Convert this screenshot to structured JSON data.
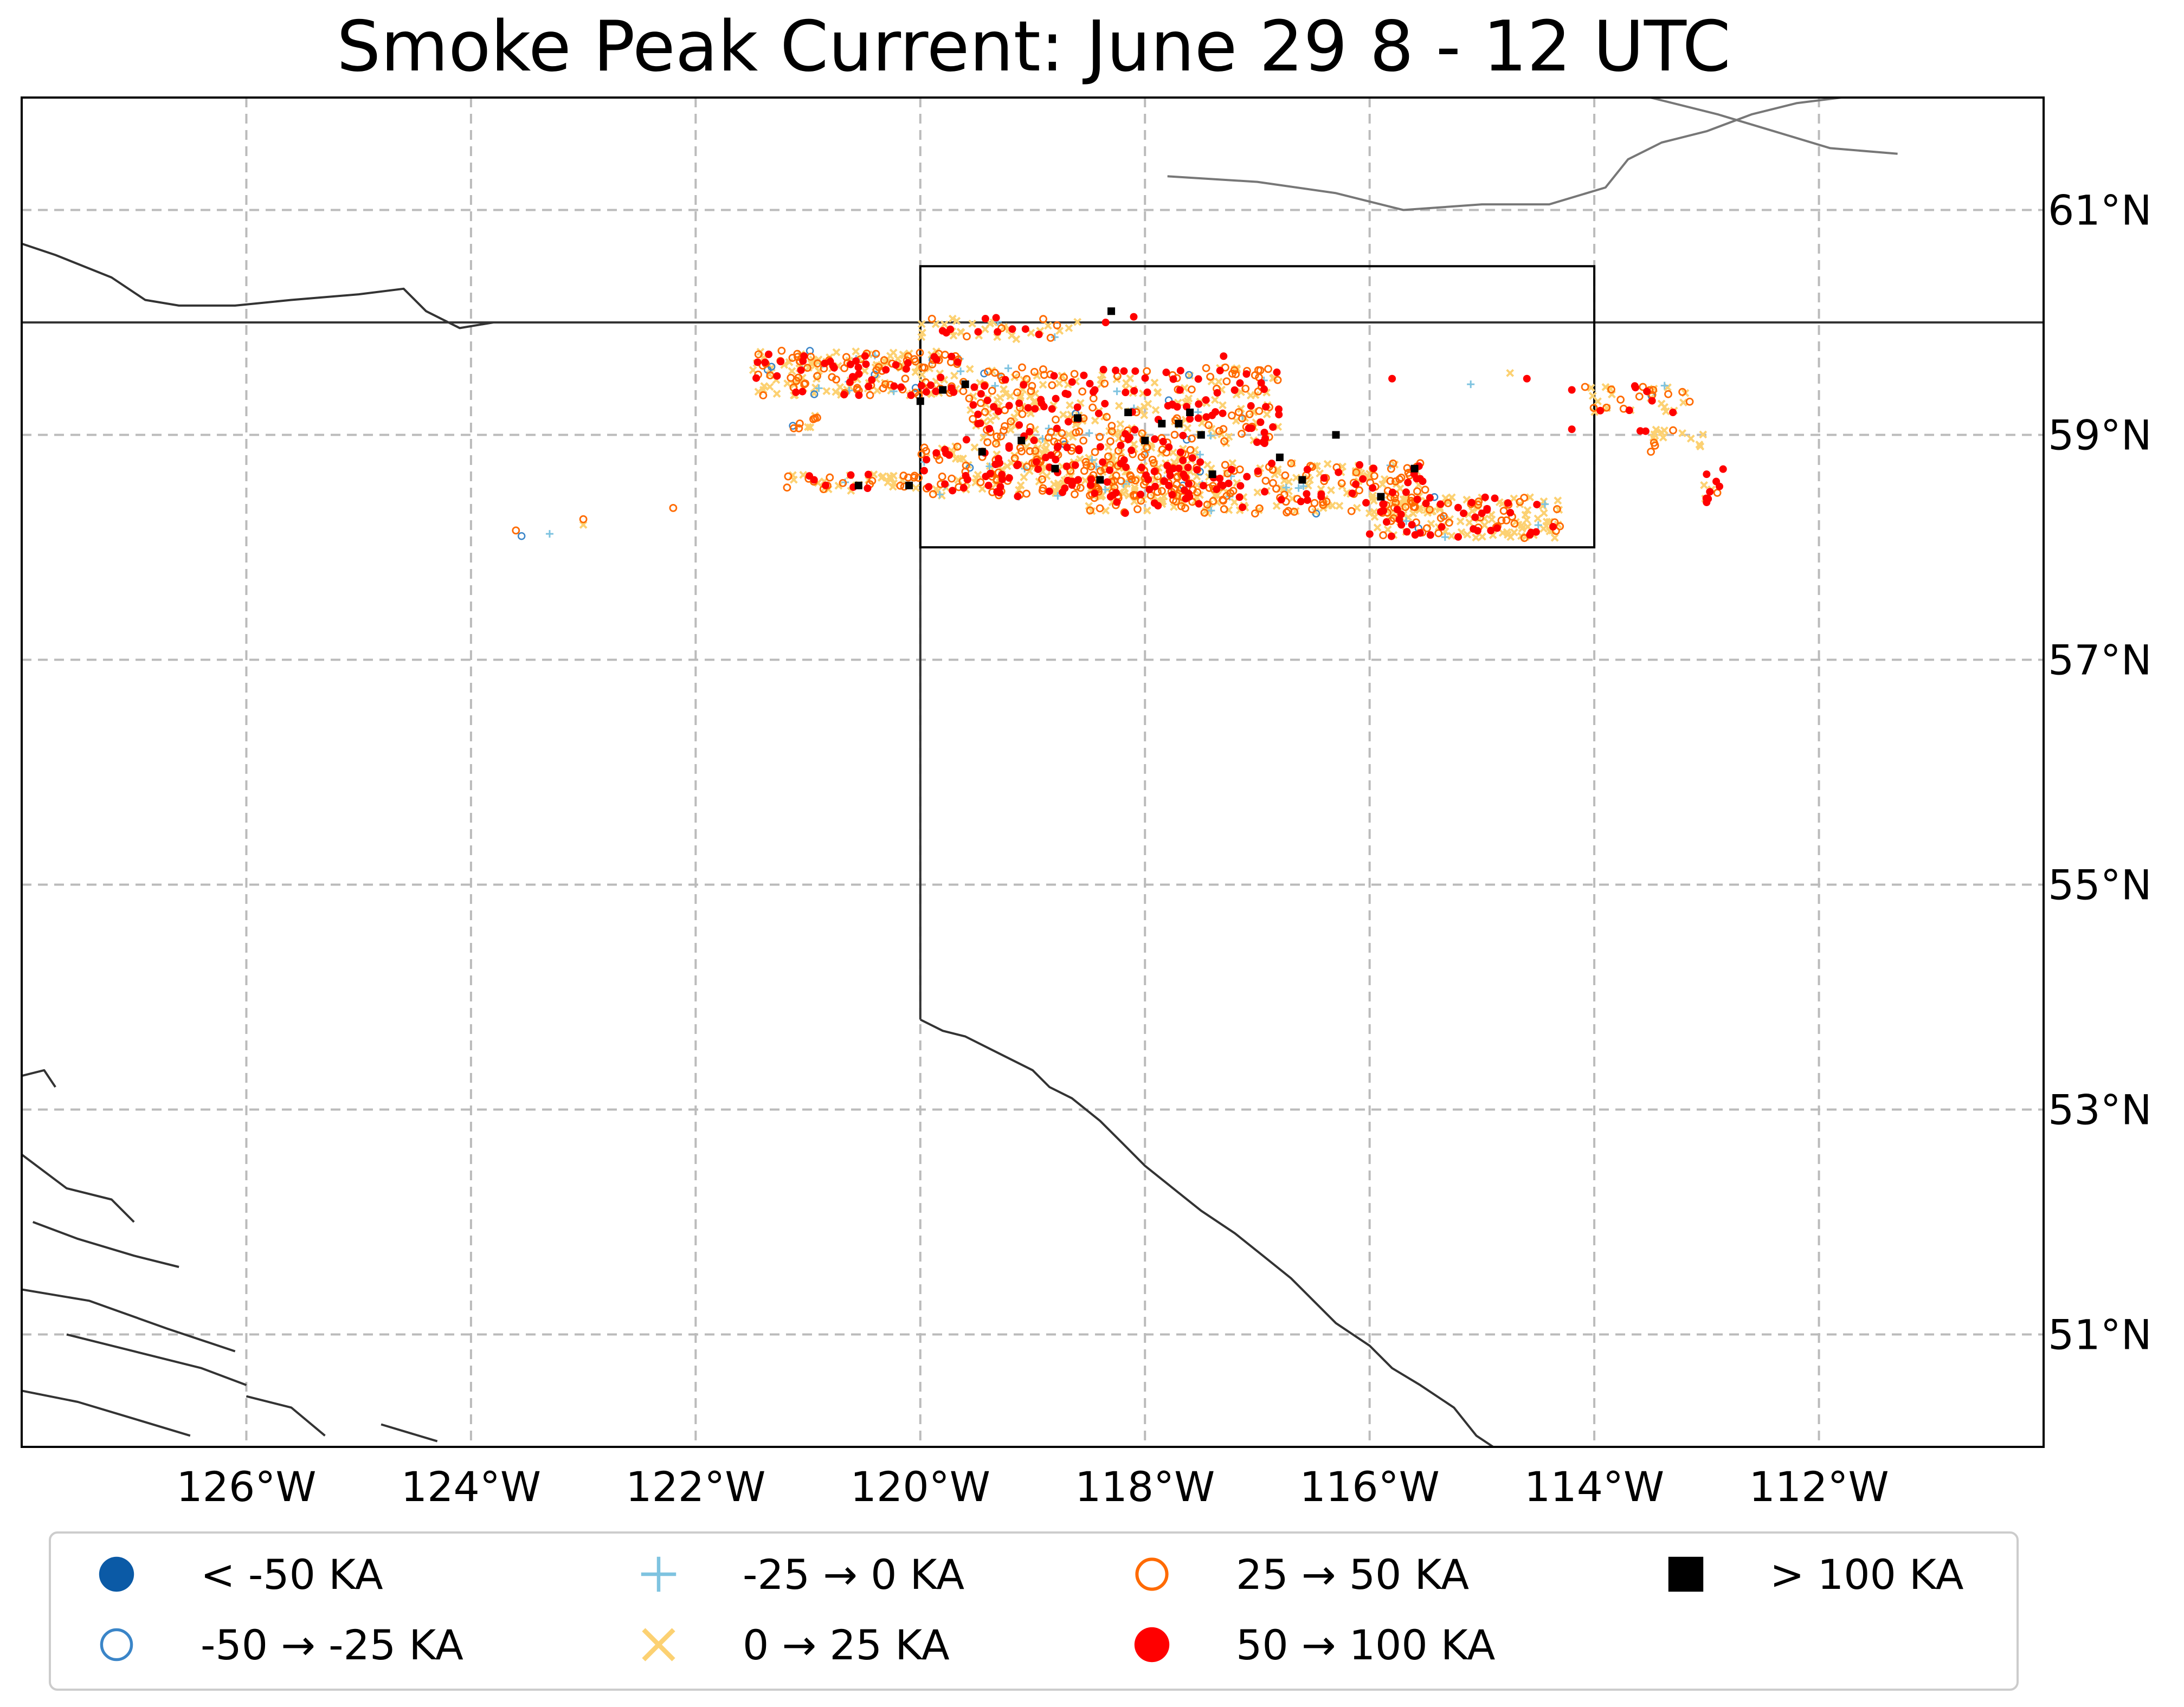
{
  "title": "Smoke Peak Current: June 29 8 - 12 UTC",
  "map": {
    "projection": "plate-carree",
    "extent": {
      "lon_min": -128,
      "lon_max": -110,
      "lat_min": 50,
      "lat_max": 62
    },
    "gridlines": true,
    "gridline_style": "dashed-gray",
    "lon_ticks": [
      -126,
      -124,
      -122,
      -120,
      -118,
      -116,
      -114,
      -112
    ],
    "lon_tick_labels": [
      "126°W",
      "124°W",
      "122°W",
      "120°W",
      "118°W",
      "116°W",
      "114°W",
      "112°W"
    ],
    "lat_ticks": [
      51,
      53,
      55,
      57,
      59,
      61
    ],
    "lat_tick_labels": [
      "51°N",
      "53°N",
      "55°N",
      "57°N",
      "59°N",
      "61°N"
    ],
    "focus_box": {
      "lon_min": -120,
      "lon_max": -114,
      "lat_min": 58,
      "lat_max": 60.5
    },
    "colors": {
      "border": "#333333",
      "water": "#777777",
      "grid": "#bbbbbb",
      "lt_neg50": "#0b5aa6",
      "neg50_neg25": "#3a85c8",
      "neg25_0": "#7ec3e0",
      "0_25": "#fcd172",
      "25_50": "#ff6a00",
      "50_100": "#ff0000",
      "gt_100": "#000000"
    }
  },
  "legend": {
    "placement": "bottom",
    "items": [
      {
        "key": "lt_neg50",
        "label": "< -50 KA",
        "marker": "filled-circle"
      },
      {
        "key": "neg50_neg25",
        "label": "-50 → -25 KA",
        "marker": "open-circle"
      },
      {
        "key": "neg25_0",
        "label": "-25 → 0 KA",
        "marker": "plus"
      },
      {
        "key": "0_25",
        "label": "0 → 25 KA",
        "marker": "x"
      },
      {
        "key": "25_50",
        "label": "25 → 50 KA",
        "marker": "open-circle"
      },
      {
        "key": "50_100",
        "label": "50 → 100 KA",
        "marker": "filled-circle"
      },
      {
        "key": "gt_100",
        "label": "> 100 KA",
        "marker": "filled-square"
      }
    ]
  },
  "lightning": {
    "gt_100_strikes": [
      [
        -118.3,
        60.1
      ],
      [
        -120.0,
        59.3
      ],
      [
        -119.8,
        59.4
      ],
      [
        -119.6,
        59.45
      ],
      [
        -118.6,
        59.15
      ],
      [
        -118.15,
        59.2
      ],
      [
        -117.85,
        59.1
      ],
      [
        -117.7,
        59.1
      ],
      [
        -117.6,
        59.2
      ],
      [
        -117.5,
        59.0
      ],
      [
        -118.0,
        58.95
      ],
      [
        -119.1,
        58.95
      ],
      [
        -119.45,
        58.85
      ],
      [
        -116.8,
        58.8
      ],
      [
        -116.3,
        59.0
      ],
      [
        -117.4,
        58.65
      ],
      [
        -116.6,
        58.6
      ],
      [
        -115.6,
        58.7
      ],
      [
        -115.9,
        58.45
      ],
      [
        -120.55,
        58.55
      ],
      [
        -120.1,
        58.55
      ],
      [
        -118.8,
        58.7
      ],
      [
        -118.4,
        58.6
      ]
    ],
    "clusters": [
      {
        "lon": [
          -121.5,
          -119.6
        ],
        "lat": [
          59.35,
          59.75
        ],
        "weights": {
          "0_25": 0.42,
          "25_50": 0.3,
          "50_100": 0.18,
          "neg25_0": 0.06,
          "neg50_neg25": 0.04
        },
        "count": 240
      },
      {
        "lon": [
          -119.6,
          -116.8
        ],
        "lat": [
          58.9,
          59.6
        ],
        "weights": {
          "0_25": 0.42,
          "25_50": 0.3,
          "50_100": 0.22,
          "neg25_0": 0.04,
          "neg50_neg25": 0.02
        },
        "count": 380
      },
      {
        "lon": [
          -120.0,
          -117.5
        ],
        "lat": [
          58.45,
          58.9
        ],
        "weights": {
          "0_25": 0.4,
          "25_50": 0.32,
          "50_100": 0.24,
          "neg25_0": 0.03,
          "neg50_neg25": 0.01
        },
        "count": 320
      },
      {
        "lon": [
          -118.5,
          -115.5
        ],
        "lat": [
          58.3,
          58.75
        ],
        "weights": {
          "0_25": 0.45,
          "25_50": 0.28,
          "50_100": 0.22,
          "neg25_0": 0.04,
          "neg50_neg25": 0.01
        },
        "count": 320
      },
      {
        "lon": [
          -116.0,
          -114.3
        ],
        "lat": [
          58.08,
          58.45
        ],
        "weights": {
          "0_25": 0.5,
          "25_50": 0.22,
          "50_100": 0.24,
          "neg25_0": 0.03,
          "neg50_neg25": 0.01
        },
        "count": 180
      },
      {
        "lon": [
          -121.2,
          -120.0
        ],
        "lat": [
          58.5,
          58.65
        ],
        "weights": {
          "0_25": 0.55,
          "25_50": 0.25,
          "50_100": 0.15,
          "neg25_0": 0.05
        },
        "count": 50
      },
      {
        "lon": [
          -120.0,
          -118.6
        ],
        "lat": [
          59.85,
          60.05
        ],
        "weights": {
          "0_25": 0.55,
          "25_50": 0.25,
          "50_100": 0.15,
          "neg25_0": 0.05
        },
        "count": 45
      },
      {
        "lon": [
          -114.1,
          -113.1
        ],
        "lat": [
          59.2,
          59.45
        ],
        "weights": {
          "0_25": 0.55,
          "25_50": 0.25,
          "50_100": 0.12,
          "neg25_0": 0.04,
          "neg50_neg25": 0.04
        },
        "count": 40
      },
      {
        "lon": [
          -113.6,
          -113.0
        ],
        "lat": [
          58.85,
          59.05
        ],
        "weights": {
          "0_25": 0.6,
          "25_50": 0.25,
          "50_100": 0.15
        },
        "count": 18
      },
      {
        "lon": [
          -113.05,
          -112.85
        ],
        "lat": [
          58.4,
          58.75
        ],
        "weights": {
          "0_25": 0.5,
          "25_50": 0.2,
          "50_100": 0.3
        },
        "count": 10
      },
      {
        "lon": [
          -121.2,
          -120.9
        ],
        "lat": [
          59.05,
          59.2
        ],
        "weights": {
          "0_25": 0.6,
          "25_50": 0.3,
          "neg50_neg25": 0.1
        },
        "count": 10
      }
    ],
    "isolated": [
      {
        "key": "25_50",
        "lon": -123.6,
        "lat": 58.15
      },
      {
        "key": "neg50_neg25",
        "lon": -123.55,
        "lat": 58.1
      },
      {
        "key": "neg25_0",
        "lon": -123.3,
        "lat": 58.12
      },
      {
        "key": "25_50",
        "lon": -123.0,
        "lat": 58.25
      },
      {
        "key": "0_25",
        "lon": -123.0,
        "lat": 58.2
      },
      {
        "key": "25_50",
        "lon": -122.2,
        "lat": 58.35
      },
      {
        "key": "50_100",
        "lon": -118.1,
        "lat": 60.05
      },
      {
        "key": "50_100",
        "lon": -118.35,
        "lat": 60.0
      },
      {
        "key": "50_100",
        "lon": -117.3,
        "lat": 59.7
      },
      {
        "key": "50_100",
        "lon": -115.8,
        "lat": 59.5
      },
      {
        "key": "50_100",
        "lon": -114.6,
        "lat": 59.5
      },
      {
        "key": "0_25",
        "lon": -114.75,
        "lat": 59.55
      },
      {
        "key": "neg25_0",
        "lon": -115.1,
        "lat": 59.45
      },
      {
        "key": "50_100",
        "lon": -114.2,
        "lat": 59.4
      },
      {
        "key": "50_100",
        "lon": -114.2,
        "lat": 59.05
      },
      {
        "key": "50_100",
        "lon": -113.0,
        "lat": 58.65
      },
      {
        "key": "50_100",
        "lon": -113.0,
        "lat": 58.4
      },
      {
        "key": "50_100",
        "lon": -113.3,
        "lat": 59.2
      }
    ]
  }
}
